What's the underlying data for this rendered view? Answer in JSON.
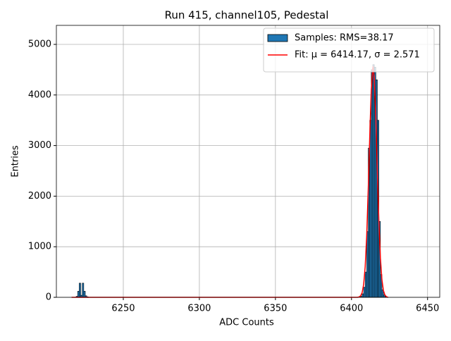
{
  "chart_data": {
    "type": "histogram",
    "title": "Run 415, channel105, Pedestal",
    "x_label": "ADC Counts",
    "y_label": "Entries",
    "xlim": [
      6206,
      6458
    ],
    "ylim": [
      0,
      5376
    ],
    "xticks": [
      6250,
      6300,
      6350,
      6400,
      6450
    ],
    "yticks": [
      0,
      1000,
      2000,
      3000,
      4000,
      5000
    ],
    "grid": true,
    "legend": "upper right",
    "series": [
      {
        "name": "Samples: RMS=38.17",
        "type": "histogram",
        "color": "#1f77b4",
        "bins": [
          6219,
          6220,
          6221,
          6222,
          6223,
          6224,
          6225,
          6226,
          6227,
          6228,
          6405,
          6406,
          6407,
          6408,
          6409,
          6410,
          6411,
          6412,
          6413,
          6414,
          6415,
          6416,
          6417,
          6418,
          6419,
          6420,
          6421,
          6422,
          6423,
          6424
        ],
        "counts": [
          20,
          120,
          280,
          40,
          280,
          120,
          30,
          10,
          0,
          0,
          5,
          20,
          70,
          200,
          500,
          1300,
          2950,
          3500,
          4500,
          4600,
          4550,
          4300,
          3500,
          1500,
          450,
          150,
          50,
          15,
          5
        ]
      },
      {
        "name": "Fit: μ = 6414.17, σ = 2.571",
        "type": "line",
        "color": "#ff0000",
        "x": [
          6216,
          6404,
          6405,
          6406,
          6407,
          6408,
          6409,
          6410,
          6411,
          6412,
          6413,
          6414,
          6414.17,
          6415,
          6416,
          6417,
          6418,
          6419,
          6420,
          6421,
          6422,
          6423,
          6424
        ],
        "values": [
          0,
          0,
          8,
          29,
          93,
          255,
          602,
          1222,
          2128,
          3186,
          4103,
          4540,
          4550,
          4318,
          3533,
          2482,
          1500,
          779,
          348,
          133,
          44,
          12,
          0
        ]
      }
    ]
  }
}
